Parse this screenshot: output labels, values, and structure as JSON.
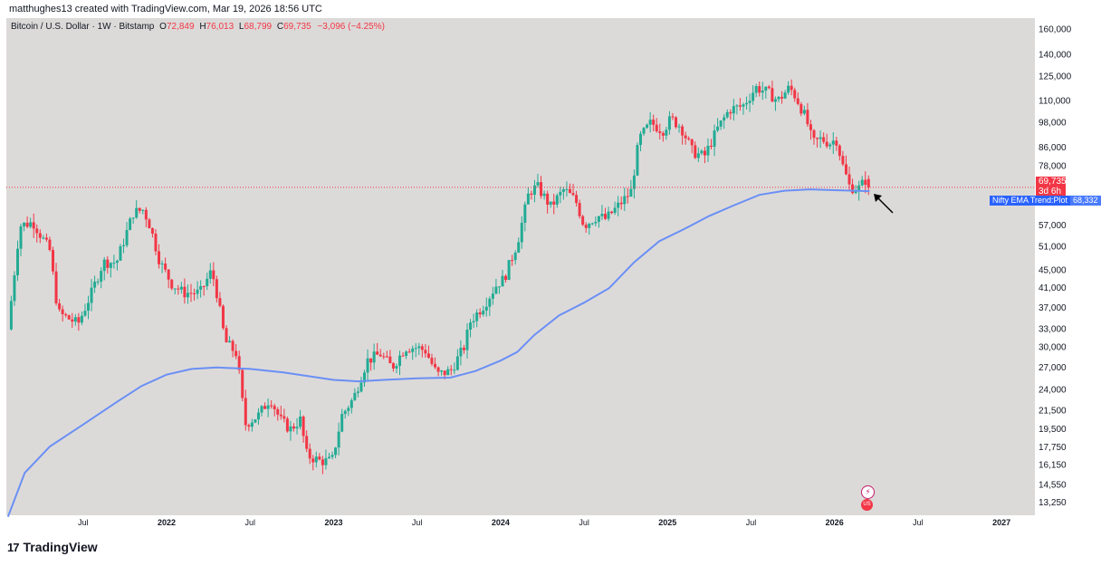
{
  "attribution": "matthughes13 created with TradingView.com, Mar 19, 2026 18:56 UTC",
  "legend": {
    "symbol": "Bitcoin / U.S. Dollar · 1W · Bitstamp",
    "open_label": "O",
    "open": "72,849",
    "high_label": "H",
    "high": "76,013",
    "low_label": "L",
    "low": "68,799",
    "close_label": "C",
    "close": "69,735",
    "change": "−3,096 (−4.25%)"
  },
  "price_tag": {
    "price": "69,735",
    "countdown": "3d 6h"
  },
  "ema_tag": {
    "name": "Nifty EMA Trend:Plot",
    "value": "68,332"
  },
  "footer": {
    "brand": "TradingView",
    "logo_mark": "17"
  },
  "event_icons": {
    "flash": "⚡",
    "flag": "US"
  },
  "colors": {
    "up": "#22ab94",
    "down": "#f23645",
    "ema": "#6a8ff5",
    "background": "#dcdad9",
    "price_line": "#f23645"
  },
  "chart_data": {
    "type": "candlestick",
    "title": "Bitcoin / U.S. Dollar · 1W · Bitstamp",
    "scale": "log",
    "y_ticks": [
      "160,000",
      "140,000",
      "125,000",
      "110,000",
      "98,000",
      "86,000",
      "78,000",
      "69,735",
      "57,000",
      "51,000",
      "45,000",
      "41,000",
      "37,000",
      "33,000",
      "30,000",
      "27,000",
      "24,000",
      "21,500",
      "19,500",
      "17,750",
      "16,150",
      "14,550",
      "13,250"
    ],
    "y_tick_values": [
      160000,
      140000,
      125000,
      110000,
      98000,
      86000,
      78000,
      69735,
      57000,
      51000,
      45000,
      41000,
      37000,
      33000,
      30000,
      27000,
      24000,
      21500,
      19500,
      17750,
      16150,
      14550,
      13250
    ],
    "x_ticks": [
      {
        "label": "Jul",
        "t": 2021.5,
        "year": false
      },
      {
        "label": "2022",
        "t": 2022.0,
        "year": true
      },
      {
        "label": "Jul",
        "t": 2022.5,
        "year": false
      },
      {
        "label": "2023",
        "t": 2023.0,
        "year": true
      },
      {
        "label": "Jul",
        "t": 2023.5,
        "year": false
      },
      {
        "label": "2024",
        "t": 2024.0,
        "year": true
      },
      {
        "label": "Jul",
        "t": 2024.5,
        "year": false
      },
      {
        "label": "2025",
        "t": 2025.0,
        "year": true
      },
      {
        "label": "Jul",
        "t": 2025.5,
        "year": false
      },
      {
        "label": "2026",
        "t": 2026.0,
        "year": true
      },
      {
        "label": "Jul",
        "t": 2026.5,
        "year": false
      },
      {
        "label": "2027",
        "t": 2027.0,
        "year": true
      }
    ],
    "x_range": [
      2021.04,
      2027.2
    ],
    "y_range": [
      12400,
      170000
    ],
    "last_close": 69735,
    "close_path": [
      [
        2021.05,
        33000
      ],
      [
        2021.12,
        57000
      ],
      [
        2021.2,
        58000
      ],
      [
        2021.3,
        50000
      ],
      [
        2021.35,
        36000
      ],
      [
        2021.47,
        34000
      ],
      [
        2021.55,
        40000
      ],
      [
        2021.62,
        47000
      ],
      [
        2021.7,
        47000
      ],
      [
        2021.8,
        61000
      ],
      [
        2021.86,
        62000
      ],
      [
        2021.9,
        57000
      ],
      [
        2021.96,
        47000
      ],
      [
        2022.03,
        42000
      ],
      [
        2022.1,
        40000
      ],
      [
        2022.2,
        40000
      ],
      [
        2022.27,
        45000
      ],
      [
        2022.3,
        40000
      ],
      [
        2022.35,
        31000
      ],
      [
        2022.42,
        29000
      ],
      [
        2022.47,
        20000
      ],
      [
        2022.55,
        21000
      ],
      [
        2022.62,
        23000
      ],
      [
        2022.68,
        20500
      ],
      [
        2022.74,
        19500
      ],
      [
        2022.8,
        20500
      ],
      [
        2022.84,
        17000
      ],
      [
        2022.92,
        16500
      ],
      [
        2022.99,
        16500
      ],
      [
        2023.05,
        21000
      ],
      [
        2023.12,
        23000
      ],
      [
        2023.2,
        28000
      ],
      [
        2023.28,
        29000
      ],
      [
        2023.35,
        27000
      ],
      [
        2023.43,
        30000
      ],
      [
        2023.5,
        30000
      ],
      [
        2023.55,
        29500
      ],
      [
        2023.62,
        26000
      ],
      [
        2023.7,
        26500
      ],
      [
        2023.78,
        30000
      ],
      [
        2023.82,
        34500
      ],
      [
        2023.9,
        37500
      ],
      [
        2023.98,
        42000
      ],
      [
        2024.02,
        43000
      ],
      [
        2024.1,
        52000
      ],
      [
        2024.17,
        68000
      ],
      [
        2024.22,
        70000
      ],
      [
        2024.3,
        63000
      ],
      [
        2024.38,
        69000
      ],
      [
        2024.45,
        65000
      ],
      [
        2024.5,
        57000
      ],
      [
        2024.58,
        60000
      ],
      [
        2024.63,
        59000
      ],
      [
        2024.7,
        63000
      ],
      [
        2024.78,
        68000
      ],
      [
        2024.83,
        90000
      ],
      [
        2024.9,
        98000
      ],
      [
        2024.97,
        94000
      ],
      [
        2025.02,
        100000
      ],
      [
        2025.08,
        96000
      ],
      [
        2025.15,
        84000
      ],
      [
        2025.22,
        82000
      ],
      [
        2025.3,
        95000
      ],
      [
        2025.37,
        105000
      ],
      [
        2025.45,
        107000
      ],
      [
        2025.53,
        118000
      ],
      [
        2025.6,
        115000
      ],
      [
        2025.66,
        110000
      ],
      [
        2025.73,
        118000
      ],
      [
        2025.77,
        112000
      ],
      [
        2025.83,
        100000
      ],
      [
        2025.87,
        88000
      ],
      [
        2025.92,
        90000
      ],
      [
        2025.97,
        88000
      ],
      [
        2026.01,
        90000
      ],
      [
        2026.05,
        78000
      ],
      [
        2026.09,
        70000
      ],
      [
        2026.14,
        69000
      ],
      [
        2026.19,
        72849
      ],
      [
        2026.21,
        69735
      ]
    ],
    "ema_path": [
      [
        2021.05,
        12300
      ],
      [
        2021.15,
        15500
      ],
      [
        2021.3,
        17800
      ],
      [
        2021.5,
        20000
      ],
      [
        2021.7,
        22500
      ],
      [
        2021.85,
        24500
      ],
      [
        2022.0,
        26000
      ],
      [
        2022.15,
        26800
      ],
      [
        2022.3,
        27000
      ],
      [
        2022.5,
        26800
      ],
      [
        2022.7,
        26300
      ],
      [
        2022.85,
        25800
      ],
      [
        2023.0,
        25300
      ],
      [
        2023.15,
        25100
      ],
      [
        2023.3,
        25300
      ],
      [
        2023.5,
        25500
      ],
      [
        2023.7,
        25600
      ],
      [
        2023.85,
        26500
      ],
      [
        2024.0,
        28000
      ],
      [
        2024.1,
        29300
      ],
      [
        2024.2,
        32000
      ],
      [
        2024.35,
        35500
      ],
      [
        2024.5,
        38000
      ],
      [
        2024.65,
        41000
      ],
      [
        2024.8,
        47000
      ],
      [
        2024.95,
        52500
      ],
      [
        2025.1,
        56000
      ],
      [
        2025.25,
        60000
      ],
      [
        2025.4,
        63500
      ],
      [
        2025.55,
        67000
      ],
      [
        2025.7,
        68500
      ],
      [
        2025.85,
        69000
      ],
      [
        2026.0,
        68700
      ],
      [
        2026.21,
        68332
      ]
    ],
    "annotation": "arrow pointing at last candle near EMA"
  }
}
